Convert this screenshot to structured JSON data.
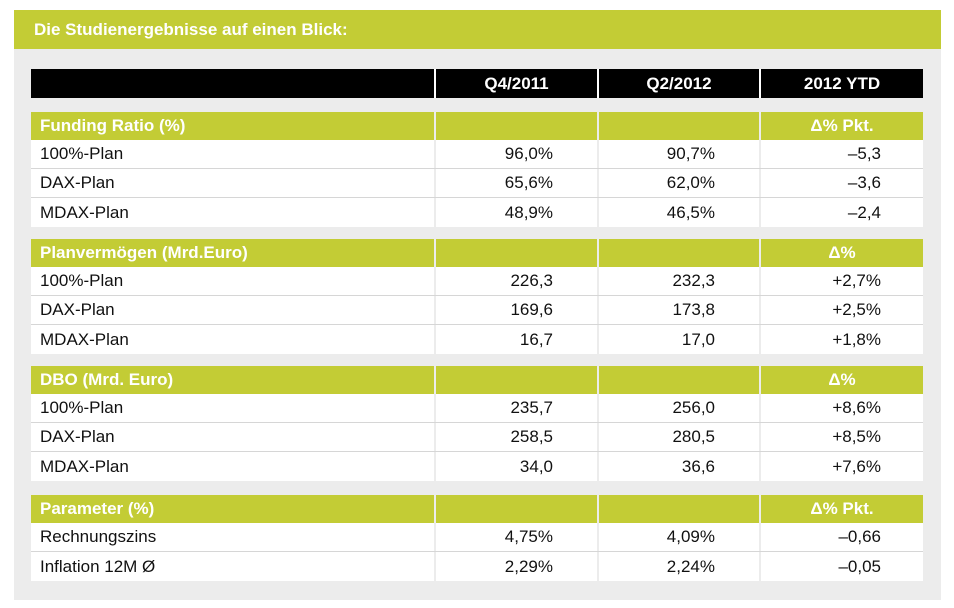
{
  "title": "Die Studienergebnisse auf einen Blick:",
  "columns": [
    "",
    "Q4/2011",
    "Q2/2012",
    "2012 YTD"
  ],
  "sections": [
    {
      "label": "Funding Ratio (%)",
      "delta_label": "Δ% Pkt.",
      "rows": [
        {
          "label": "100%-Plan",
          "q4_2011": "96,0%",
          "q2_2012": "90,7%",
          "ytd": "–5,3"
        },
        {
          "label": "DAX-Plan",
          "q4_2011": "65,6%",
          "q2_2012": "62,0%",
          "ytd": "–3,6"
        },
        {
          "label": "MDAX-Plan",
          "q4_2011": "48,9%",
          "q2_2012": "46,5%",
          "ytd": "–2,4"
        }
      ]
    },
    {
      "label": "Planvermögen (Mrd.Euro)",
      "delta_label": "Δ%",
      "rows": [
        {
          "label": "100%-Plan",
          "q4_2011": "226,3",
          "q2_2012": "232,3",
          "ytd": "+2,7%"
        },
        {
          "label": "DAX-Plan",
          "q4_2011": "169,6",
          "q2_2012": "173,8",
          "ytd": "+2,5%"
        },
        {
          "label": "MDAX-Plan",
          "q4_2011": "16,7",
          "q2_2012": "17,0",
          "ytd": "+1,8%"
        }
      ]
    },
    {
      "label": "DBO (Mrd. Euro)",
      "delta_label": "Δ%",
      "rows": [
        {
          "label": "100%-Plan",
          "q4_2011": "235,7",
          "q2_2012": "256,0",
          "ytd": "+8,6%"
        },
        {
          "label": "DAX-Plan",
          "q4_2011": "258,5",
          "q2_2012": "280,5",
          "ytd": "+8,5%"
        },
        {
          "label": "MDAX-Plan",
          "q4_2011": "34,0",
          "q2_2012": "36,6",
          "ytd": "+7,6%"
        }
      ]
    },
    {
      "label": "Parameter (%)",
      "delta_label": "Δ% Pkt.",
      "rows": [
        {
          "label": "Rechnungszins",
          "q4_2011": "4,75%",
          "q2_2012": "4,09%",
          "ytd": "–0,66"
        },
        {
          "label": "Inflation 12M Ø",
          "q4_2011": "2,29%",
          "q2_2012": "2,24%",
          "ytd": "–0,05"
        }
      ]
    }
  ]
}
